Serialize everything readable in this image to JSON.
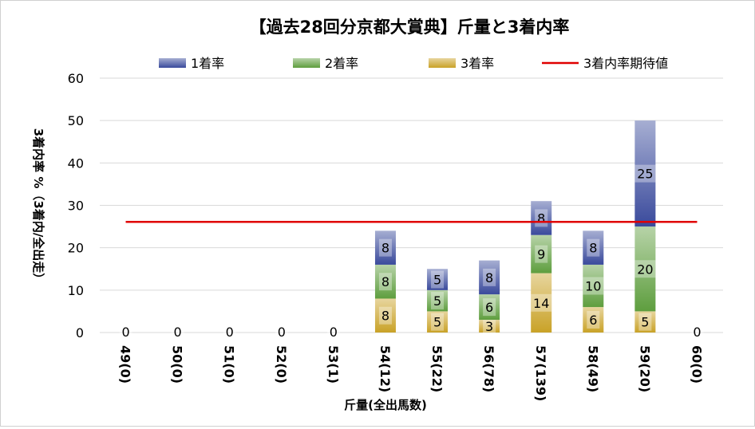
{
  "chart_data": {
    "type": "bar",
    "stacked": true,
    "title": "【過去28回分京都大賞典】斤量と3着内率",
    "xlabel": "斤量(全出馬数)",
    "ylabel": "3着内率 %（3着内/全出走）",
    "ylim": [
      0,
      60
    ],
    "yticks": [
      "0",
      "10",
      "20",
      "30",
      "40",
      "50",
      "60"
    ],
    "grid": true,
    "legend_position": "top",
    "categories": [
      "49(0)",
      "50(0)",
      "51(0)",
      "52(0)",
      "53(1)",
      "54(12)",
      "55(22)",
      "56(78)",
      "57(139)",
      "58(49)",
      "59(20)",
      "60(0)"
    ],
    "series": [
      {
        "name": "3着率",
        "color": "#c9a227",
        "values": [
          0,
          0,
          0,
          0,
          0,
          8,
          5,
          3,
          14,
          6,
          5,
          0
        ]
      },
      {
        "name": "2着率",
        "color": "#5e9e3e",
        "values": [
          0,
          0,
          0,
          0,
          0,
          8,
          5,
          6,
          9,
          10,
          20,
          0
        ]
      },
      {
        "name": "1着率",
        "color": "#3a4a9c",
        "values": [
          0,
          0,
          0,
          0,
          0,
          8,
          5,
          8,
          8,
          8,
          25,
          0
        ]
      }
    ],
    "segment_labels": {
      "3着率": [
        "0",
        "0",
        "0",
        "0",
        "0",
        "8",
        "5",
        "3",
        "14",
        "6",
        "5",
        "0"
      ],
      "2着率": [
        "",
        "",
        "",
        "",
        "",
        "8",
        "5",
        "6",
        "9",
        "10",
        "20",
        ""
      ],
      "1着率": [
        "",
        "",
        "",
        "",
        "",
        "8",
        "5",
        "8",
        "8",
        "8",
        "25",
        ""
      ]
    },
    "reference_line": {
      "name": "3着内率期待値",
      "color": "#e00000",
      "value": 26.1
    }
  }
}
